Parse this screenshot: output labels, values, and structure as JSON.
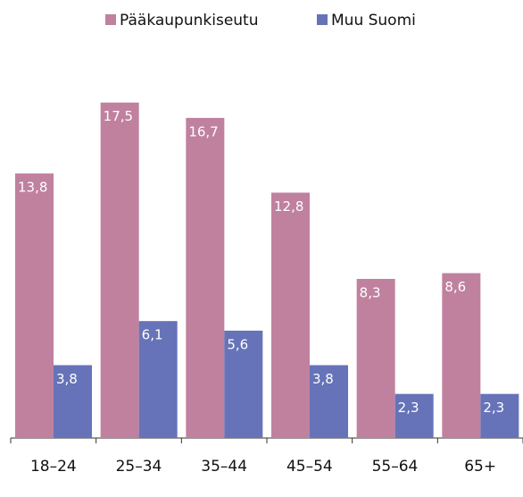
{
  "chart_data": {
    "type": "bar",
    "categories": [
      "18–24",
      "25–34",
      "35–44",
      "45–54",
      "55–64",
      "65+"
    ],
    "series": [
      {
        "name": "Pääkaupunkiseutu",
        "color": "#c0819f",
        "values": [
          13.8,
          17.5,
          16.7,
          12.8,
          8.3,
          8.6
        ],
        "value_labels": [
          "13,8",
          "17,5",
          "16,7",
          "12,8",
          "8,3",
          "8,6"
        ]
      },
      {
        "name": "Muu Suomi",
        "color": "#6673b8",
        "values": [
          3.8,
          6.1,
          5.6,
          3.8,
          2.3,
          2.3
        ],
        "value_labels": [
          "3,8",
          "6,1",
          "5,6",
          "3,8",
          "2,3",
          "2,3"
        ]
      }
    ],
    "ylim": [
      0,
      18
    ],
    "legend": "top"
  }
}
